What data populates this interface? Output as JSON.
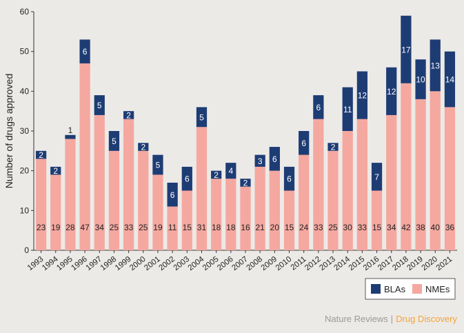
{
  "chart_data": {
    "type": "bar",
    "stacked": true,
    "categories": [
      "1993",
      "1994",
      "1995",
      "1996",
      "1997",
      "1998",
      "1999",
      "2000",
      "2001",
      "2002",
      "2003",
      "2004",
      "2005",
      "2006",
      "2007",
      "2008",
      "2009",
      "2010",
      "2011",
      "2012",
      "2013",
      "2014",
      "2015",
      "2016",
      "2017",
      "2018",
      "2019",
      "2020",
      "2021"
    ],
    "series": [
      {
        "name": "NMEs",
        "values": [
          23,
          19,
          28,
          47,
          34,
          25,
          33,
          25,
          19,
          11,
          15,
          31,
          18,
          18,
          16,
          21,
          20,
          15,
          24,
          33,
          25,
          30,
          33,
          15,
          34,
          42,
          38,
          40,
          36
        ],
        "color": "#f5a8a0"
      },
      {
        "name": "BLAs",
        "values": [
          2,
          2,
          1,
          6,
          5,
          5,
          2,
          2,
          5,
          6,
          6,
          5,
          2,
          4,
          2,
          3,
          6,
          6,
          6,
          6,
          2,
          11,
          12,
          7,
          12,
          17,
          10,
          13,
          14
        ],
        "color": "#1e3c74"
      }
    ],
    "ylabel": "Number of drugs approved",
    "xlabel": "",
    "ylim": [
      0,
      60
    ],
    "yticks": [
      0,
      10,
      20,
      30,
      40,
      50,
      60
    ],
    "grid": false,
    "legend_position": "bottom-right"
  },
  "legend": {
    "items": [
      {
        "label": "BLAs",
        "color": "#1e3c74"
      },
      {
        "label": "NMEs",
        "color": "#f5a8a0"
      }
    ]
  },
  "footer": {
    "brand_one": "Nature Reviews",
    "separator": "|",
    "brand_two": "Drug Discovery"
  }
}
